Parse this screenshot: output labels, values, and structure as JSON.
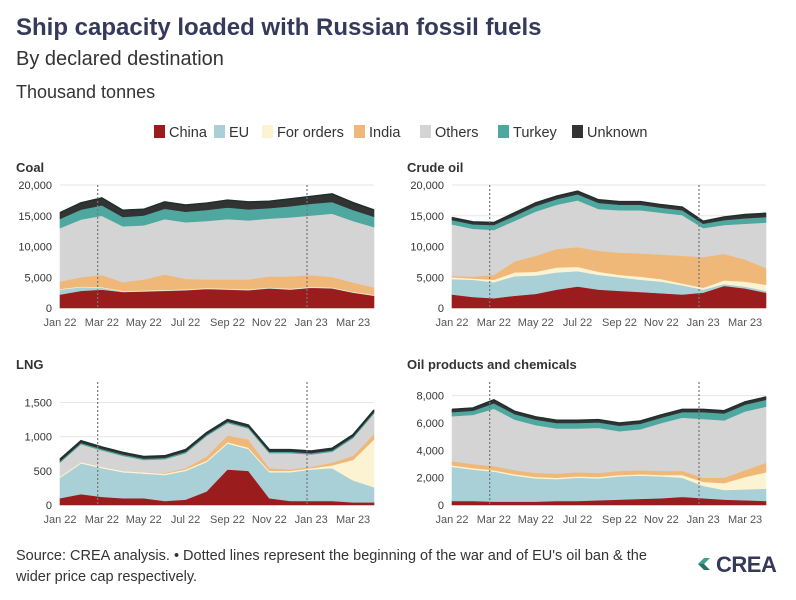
{
  "header": {
    "title": "Ship capacity loaded with Russian fossil fuels",
    "subtitle": "By declared destination",
    "unit": "Thousand tonnes"
  },
  "legend": [
    {
      "name": "China",
      "color": "#9b1c1c"
    },
    {
      "name": "EU",
      "color": "#a8d0d6"
    },
    {
      "name": "For orders",
      "color": "#fcf3d2"
    },
    {
      "name": "India",
      "color": "#f0b878"
    },
    {
      "name": "Others",
      "color": "#d4d4d4"
    },
    {
      "name": "Turkey",
      "color": "#4ea8a0"
    },
    {
      "name": "Unknown",
      "color": "#333333"
    }
  ],
  "footer": {
    "source": "Source: CREA analysis. • Dotted lines represent the beginning of the war and of EU's oil ban & the wider price cap respectively.",
    "logo_text": "CREA"
  },
  "chart_data": [
    {
      "type": "area",
      "title": "Coal",
      "x": [
        "Jan 22",
        "Feb 22",
        "Mar 22",
        "Apr 22",
        "May 22",
        "Jun 22",
        "Jul 22",
        "Aug 22",
        "Sep 22",
        "Oct 22",
        "Nov 22",
        "Dec 22",
        "Jan 23",
        "Feb 23",
        "Mar 23",
        "Apr 23"
      ],
      "xticks": [
        "Jan 22",
        "Mar 22",
        "May 22",
        "Jul 22",
        "Sep 22",
        "Nov 22",
        "Jan 23",
        "Mar 23"
      ],
      "yticks": [
        "0",
        "5,000",
        "10,000",
        "15,000",
        "20,000"
      ],
      "ylim": [
        0,
        20000
      ],
      "reference_lines": [
        "Feb 22",
        "Dec 22"
      ],
      "series": [
        {
          "name": "China",
          "values": [
            2200,
            2800,
            3000,
            2600,
            2700,
            2800,
            2900,
            3100,
            3000,
            2900,
            3200,
            3000,
            3300,
            3200,
            2500,
            2000
          ]
        },
        {
          "name": "EU",
          "values": [
            800,
            600,
            300,
            100,
            50,
            50,
            50,
            50,
            50,
            50,
            50,
            50,
            50,
            50,
            50,
            50
          ]
        },
        {
          "name": "For orders",
          "values": [
            100,
            100,
            100,
            100,
            100,
            100,
            100,
            100,
            100,
            100,
            100,
            100,
            100,
            100,
            100,
            100
          ]
        },
        {
          "name": "India",
          "values": [
            1200,
            1500,
            2000,
            1400,
            1800,
            2500,
            1700,
            1400,
            1500,
            1600,
            1800,
            2000,
            1900,
            1700,
            1500,
            1200
          ]
        },
        {
          "name": "Others",
          "values": [
            8700,
            9400,
            9600,
            9100,
            8800,
            9000,
            9200,
            9500,
            9800,
            9600,
            9400,
            9600,
            9700,
            10300,
            10000,
            9800
          ]
        },
        {
          "name": "Turkey",
          "values": [
            1500,
            1600,
            1700,
            1500,
            1600,
            1700,
            1700,
            1800,
            1900,
            1800,
            1700,
            1800,
            1900,
            1900,
            1800,
            1700
          ]
        },
        {
          "name": "Unknown",
          "values": [
            1000,
            1100,
            1200,
            1100,
            1000,
            1100,
            1100,
            1100,
            1200,
            1200,
            1100,
            1200,
            1200,
            1300,
            1200,
            1100
          ]
        }
      ]
    },
    {
      "type": "area",
      "title": "Crude oil",
      "x": [
        "Jan 22",
        "Feb 22",
        "Mar 22",
        "Apr 22",
        "May 22",
        "Jun 22",
        "Jul 22",
        "Aug 22",
        "Sep 22",
        "Oct 22",
        "Nov 22",
        "Dec 22",
        "Jan 23",
        "Feb 23",
        "Mar 23",
        "Apr 23"
      ],
      "xticks": [
        "Jan 22",
        "Mar 22",
        "May 22",
        "Jul 22",
        "Sep 22",
        "Nov 22",
        "Jan 23",
        "Mar 23"
      ],
      "yticks": [
        "0",
        "5,000",
        "10,000",
        "15,000",
        "20,000"
      ],
      "ylim": [
        0,
        20000
      ],
      "reference_lines": [
        "Feb 22",
        "Dec 22"
      ],
      "series": [
        {
          "name": "China",
          "values": [
            2200,
            1800,
            1600,
            2000,
            2300,
            3000,
            3500,
            3000,
            2800,
            2600,
            2400,
            2200,
            2500,
            3600,
            3200,
            2500
          ]
        },
        {
          "name": "EU",
          "values": [
            2500,
            2800,
            2600,
            3200,
            3000,
            2800,
            2500,
            2400,
            2200,
            2000,
            1900,
            1500,
            500,
            300,
            300,
            300
          ]
        },
        {
          "name": "For orders",
          "values": [
            300,
            200,
            400,
            600,
            600,
            800,
            700,
            500,
            400,
            500,
            400,
            300,
            300,
            600,
            800,
            1000
          ]
        },
        {
          "name": "India",
          "values": [
            200,
            300,
            800,
            1800,
            2600,
            3000,
            3200,
            3400,
            3600,
            3800,
            4000,
            4500,
            5000,
            4300,
            3600,
            2700
          ]
        },
        {
          "name": "Others",
          "values": [
            8400,
            7800,
            7300,
            6600,
            7200,
            7200,
            7600,
            6800,
            6900,
            7000,
            6800,
            6600,
            4700,
            4700,
            5800,
            7400
          ]
        },
        {
          "name": "Turkey",
          "values": [
            700,
            700,
            800,
            800,
            900,
            900,
            1000,
            1000,
            900,
            900,
            800,
            800,
            700,
            800,
            900,
            900
          ]
        },
        {
          "name": "Unknown",
          "values": [
            400,
            400,
            400,
            500,
            500,
            500,
            500,
            500,
            500,
            500,
            500,
            500,
            400,
            500,
            600,
            600
          ]
        }
      ]
    },
    {
      "type": "area",
      "title": "LNG",
      "x": [
        "Jan 22",
        "Feb 22",
        "Mar 22",
        "Apr 22",
        "May 22",
        "Jun 22",
        "Jul 22",
        "Aug 22",
        "Sep 22",
        "Oct 22",
        "Nov 22",
        "Dec 22",
        "Jan 23",
        "Feb 23",
        "Mar 23",
        "Apr 23"
      ],
      "xticks": [
        "Jan 22",
        "Mar 22",
        "May 22",
        "Jul 22",
        "Sep 22",
        "Nov 22",
        "Jan 23",
        "Mar 23"
      ],
      "yticks": [
        "0",
        "500",
        "1,000",
        "1,500"
      ],
      "ylim": [
        0,
        1800
      ],
      "reference_lines": [
        "Feb 22",
        "Dec 22"
      ],
      "series": [
        {
          "name": "China",
          "values": [
            100,
            160,
            120,
            100,
            100,
            60,
            80,
            200,
            520,
            500,
            100,
            60,
            60,
            60,
            40,
            40
          ]
        },
        {
          "name": "EU",
          "values": [
            300,
            450,
            420,
            380,
            360,
            380,
            420,
            430,
            380,
            320,
            380,
            420,
            460,
            480,
            320,
            220
          ]
        },
        {
          "name": "For orders",
          "values": [
            20,
            20,
            20,
            20,
            20,
            20,
            20,
            20,
            20,
            20,
            20,
            20,
            20,
            40,
            300,
            700
          ]
        },
        {
          "name": "India",
          "values": [
            0,
            0,
            0,
            0,
            0,
            10,
            20,
            60,
            100,
            120,
            40,
            20,
            20,
            40,
            60,
            80
          ]
        },
        {
          "name": "Others",
          "values": [
            200,
            260,
            240,
            220,
            180,
            200,
            220,
            300,
            180,
            160,
            220,
            240,
            180,
            160,
            260,
            300
          ]
        },
        {
          "name": "Turkey",
          "values": [
            20,
            20,
            20,
            20,
            20,
            20,
            20,
            20,
            20,
            20,
            20,
            20,
            20,
            20,
            20,
            20
          ]
        },
        {
          "name": "Unknown",
          "values": [
            30,
            30,
            30,
            30,
            30,
            30,
            30,
            30,
            30,
            30,
            30,
            30,
            30,
            30,
            30,
            30
          ]
        }
      ]
    },
    {
      "type": "area",
      "title": "Oil products and chemicals",
      "x": [
        "Jan 22",
        "Feb 22",
        "Mar 22",
        "Apr 22",
        "May 22",
        "Jun 22",
        "Jul 22",
        "Aug 22",
        "Sep 22",
        "Oct 22",
        "Nov 22",
        "Dec 22",
        "Jan 23",
        "Feb 23",
        "Mar 23",
        "Apr 23"
      ],
      "xticks": [
        "Jan 22",
        "Mar 22",
        "May 22",
        "Jul 22",
        "Sep 22",
        "Nov 22",
        "Jan 23",
        "Mar 23"
      ],
      "yticks": [
        "0",
        "2,000",
        "4,000",
        "6,000",
        "8,000"
      ],
      "ylim": [
        0,
        9000
      ],
      "reference_lines": [
        "Feb 22",
        "Dec 22"
      ],
      "series": [
        {
          "name": "China",
          "values": [
            300,
            300,
            250,
            250,
            250,
            300,
            300,
            350,
            400,
            450,
            500,
            600,
            500,
            400,
            350,
            300
          ]
        },
        {
          "name": "EU",
          "values": [
            2500,
            2300,
            2200,
            1900,
            1700,
            1600,
            1700,
            1600,
            1700,
            1700,
            1600,
            1400,
            900,
            700,
            800,
            900
          ]
        },
        {
          "name": "For orders",
          "values": [
            100,
            100,
            100,
            100,
            100,
            100,
            100,
            100,
            100,
            100,
            100,
            200,
            300,
            500,
            900,
            1200
          ]
        },
        {
          "name": "India",
          "values": [
            300,
            300,
            300,
            300,
            300,
            300,
            300,
            300,
            300,
            300,
            300,
            300,
            300,
            400,
            500,
            700
          ]
        },
        {
          "name": "Others",
          "values": [
            3300,
            3600,
            4200,
            3700,
            3500,
            3300,
            3200,
            3300,
            2900,
            3000,
            3500,
            3900,
            4300,
            4200,
            4300,
            4100
          ]
        },
        {
          "name": "Turkey",
          "values": [
            300,
            300,
            400,
            400,
            400,
            400,
            400,
            400,
            400,
            400,
            400,
            400,
            500,
            500,
            500,
            500
          ]
        },
        {
          "name": "Unknown",
          "values": [
            200,
            200,
            250,
            200,
            200,
            200,
            200,
            200,
            200,
            200,
            200,
            200,
            200,
            200,
            200,
            200
          ]
        }
      ]
    }
  ]
}
